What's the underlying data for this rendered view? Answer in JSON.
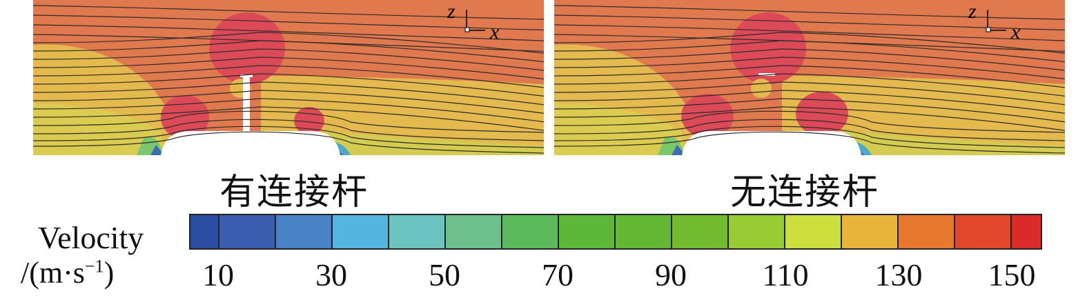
{
  "panels": [
    {
      "caption": "有连接杆",
      "has_rod": true
    },
    {
      "caption": "无连接杆",
      "has_rod": false
    }
  ],
  "axis_labels": {
    "z": "z",
    "x": "x"
  },
  "colorbar": {
    "title": "Velocity",
    "unit_prefix": "/(m·s",
    "unit_exp": "−1",
    "unit_suffix": ")",
    "colors": [
      "#2b4ea2",
      "#3a5db0",
      "#4a82c6",
      "#54b6df",
      "#6cc4c0",
      "#6dc08e",
      "#5cba5c",
      "#5db83a",
      "#62b833",
      "#72bb2e",
      "#98cb34",
      "#cbdf3e",
      "#e8b43a",
      "#e6782f",
      "#e0472d",
      "#db2a2a"
    ],
    "tick_labels": [
      "10",
      "30",
      "50",
      "70",
      "90",
      "110",
      "130",
      "150"
    ]
  }
}
